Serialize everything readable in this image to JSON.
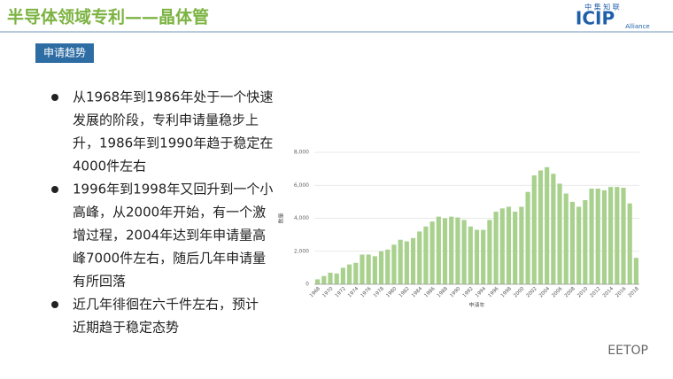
{
  "header": {
    "title": "半导体领域专利——晶体管"
  },
  "logo": {
    "cn": "中 集 知 联",
    "mark": "ICIP",
    "sub": "Alliance"
  },
  "tag": "申请趋势",
  "bullets": [
    {
      "lines": [
        "从1968年到1986年处于一个快速",
        "发展的阶段，专利申请量稳步上",
        "升，1986年到1990年趋于稳定在",
        "4000件左右"
      ]
    },
    {
      "lines": [
        "1996年到1998年又回升到一个小",
        "高峰，从2000年开始，有一个激",
        "增过程，2004年达到年申请量高",
        "峰7000件左右，随后几年申请量",
        "有所回落"
      ]
    },
    {
      "lines": [
        "近几年徘徊在六千件左右，预计",
        "近期趋于稳定态势"
      ]
    }
  ],
  "watermark": "EETOP",
  "chart_data": {
    "type": "bar",
    "x_label": "申请年",
    "y_label": "数量",
    "color": "#a9d18e",
    "grid": true,
    "categories": [
      "1968",
      null,
      "1970",
      null,
      "1972",
      null,
      "1974",
      null,
      "1976",
      null,
      "1978",
      null,
      "1980",
      null,
      "1982",
      null,
      "1984",
      null,
      "1986",
      null,
      "1988",
      null,
      "1990",
      null,
      "1992",
      null,
      "1994",
      null,
      "1996",
      null,
      "1998",
      null,
      "2000",
      null,
      "2002",
      null,
      "2004",
      null,
      "2006",
      null,
      "2008",
      null,
      "2010",
      null,
      "2012",
      null,
      "2014",
      null,
      "2016",
      null,
      "2018"
    ],
    "values": [
      300,
      500,
      700,
      650,
      1000,
      1200,
      1300,
      1800,
      1800,
      1700,
      2000,
      2100,
      2400,
      2700,
      2600,
      2800,
      3200,
      3500,
      3800,
      4100,
      4000,
      4100,
      4050,
      3900,
      3500,
      3300,
      3300,
      3900,
      4400,
      4600,
      4700,
      4400,
      4700,
      5600,
      6600,
      6900,
      7100,
      6700,
      6100,
      5500,
      5000,
      4700,
      5100,
      5800,
      5800,
      5700,
      5900,
      5900,
      5850,
      4900,
      1600
    ],
    "ylim": [
      0,
      8000
    ],
    "yticks": [
      0,
      {
        "value": 2000,
        "label": "2,000"
      },
      {
        "value": 4000,
        "label": "4,000"
      },
      {
        "value": 6000,
        "label": "6,000"
      },
      {
        "value": 8000,
        "label": "8,000"
      }
    ]
  }
}
